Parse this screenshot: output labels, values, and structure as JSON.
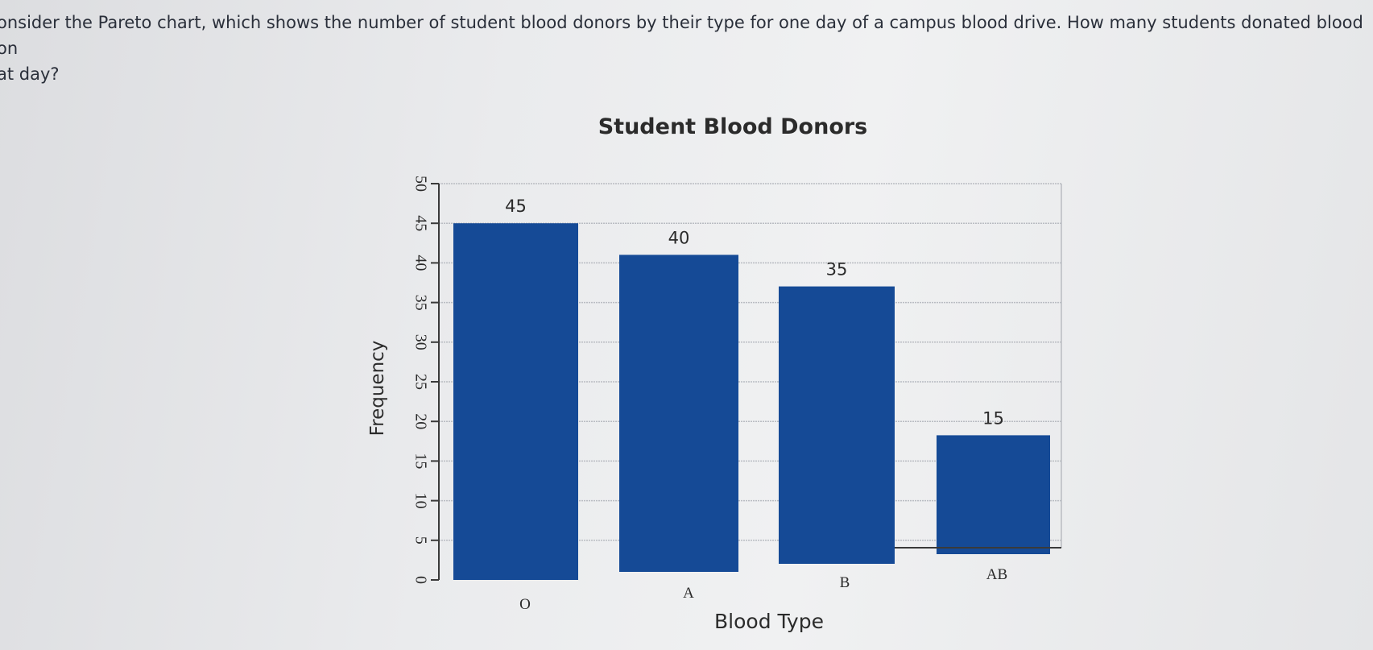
{
  "question": {
    "line1": "onsider the Pareto chart, which shows the number of student blood donors by their type for one day of a campus blood drive. How many students donated blood on",
    "line2": "at day?"
  },
  "colors": {
    "bar": "#154a96",
    "grid": "#b9bcc2",
    "axis": "#3a3a3a",
    "text": "#2b2b2b"
  },
  "chart_data": {
    "type": "bar",
    "title": "Student Blood Donors",
    "xlabel": "Blood Type",
    "ylabel": "Frequency",
    "categories": [
      "O",
      "A",
      "B",
      "AB"
    ],
    "values": [
      45,
      40,
      35,
      15
    ],
    "ylim": [
      0,
      50
    ],
    "yticks": [
      0,
      5,
      10,
      15,
      20,
      25,
      30,
      35,
      40,
      45,
      50
    ],
    "grid": true,
    "legend": "none",
    "data_labels": [
      "45",
      "40",
      "35",
      "15"
    ]
  }
}
